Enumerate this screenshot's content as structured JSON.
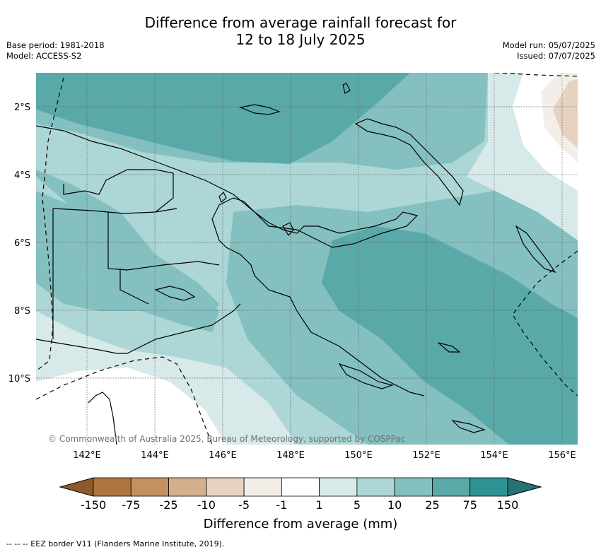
{
  "title": {
    "line1": "Difference from average rainfall forecast for",
    "line2": "12 to 18 July 2025"
  },
  "meta_left": {
    "base_period": "Base period: 1981-2018",
    "model": "Model: ACCESS-S2"
  },
  "meta_right": {
    "model_run": "Model run: 05/07/2025",
    "issued": "Issued: 07/07/2025"
  },
  "map": {
    "lat_labels": [
      "2°S",
      "4°S",
      "6°S",
      "8°S",
      "10°S"
    ],
    "lon_labels": [
      "142°E",
      "144°E",
      "146°E",
      "148°E",
      "150°E",
      "152°E",
      "154°E",
      "156°E"
    ],
    "copyright": "© Commonwealth of Australia 2025, Bureau of Meteorology, supported by COSPPac",
    "region_shown": "Papua New Guinea",
    "gridlines": true
  },
  "colorbar": {
    "title": "Difference from average (mm)",
    "tick_labels": [
      "-150",
      "-75",
      "-25",
      "-10",
      "-5",
      "-1",
      "1",
      "5",
      "10",
      "25",
      "75",
      "150"
    ],
    "colors": [
      "#8c5a2b",
      "#ad7540",
      "#c3915f",
      "#d4b08f",
      "#e6d2c1",
      "#f4eee8",
      "#ffffff",
      "#d7e9e9",
      "#add6d6",
      "#84c0c0",
      "#5aa9a9",
      "#2f9393",
      "#247272"
    ]
  },
  "footnote": "-- -- -- EEZ border V11 (Flanders Marine Institute, 2019)."
}
